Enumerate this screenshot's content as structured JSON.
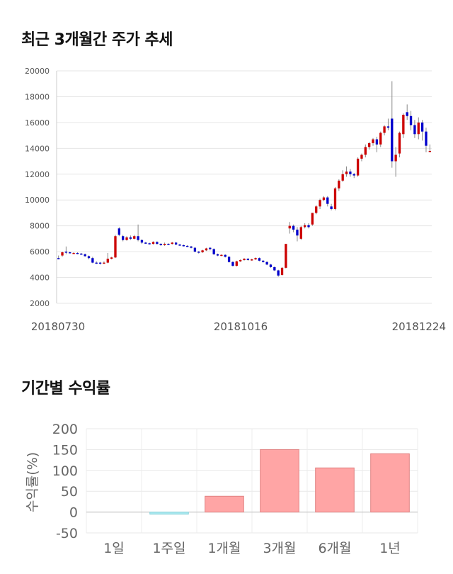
{
  "section1_title": "최근 3개월간 주가 추세",
  "section2_title": "기간별 수익률",
  "chart_data": [
    {
      "type": "candlestick",
      "ylim": [
        2000,
        20000
      ],
      "yticks": [
        2000,
        4000,
        6000,
        8000,
        10000,
        12000,
        14000,
        16000,
        18000,
        20000
      ],
      "xticks": [
        "20180730",
        "20181016",
        "20181224"
      ],
      "colors": {
        "up": "#cc0000",
        "down": "#0000cc"
      },
      "candles": [
        [
          5500,
          5700,
          5450,
          5400
        ],
        [
          5700,
          6000,
          5950,
          5600
        ],
        [
          6000,
          6400,
          5950,
          5800
        ],
        [
          5950,
          6000,
          5900,
          5900
        ],
        [
          5900,
          5950,
          5900,
          5850
        ],
        [
          5900,
          5950,
          5850,
          5800
        ],
        [
          5850,
          5900,
          5800,
          5750
        ],
        [
          5800,
          5850,
          5650,
          5600
        ],
        [
          5650,
          5700,
          5500,
          5400
        ],
        [
          5500,
          5600,
          5150,
          5100
        ],
        [
          5150,
          5250,
          5100,
          5050
        ],
        [
          5150,
          5200,
          5100,
          5000
        ],
        [
          5100,
          5250,
          5150,
          5050
        ],
        [
          5150,
          5900,
          5450,
          5100
        ],
        [
          5450,
          5600,
          5550,
          5400
        ],
        [
          5550,
          7300,
          7200,
          5500
        ],
        [
          7800,
          7900,
          7300,
          7200
        ],
        [
          7200,
          7300,
          6900,
          6800
        ],
        [
          6900,
          7200,
          7100,
          6850
        ],
        [
          7100,
          7250,
          7000,
          6900
        ],
        [
          7000,
          7300,
          7200,
          6950
        ],
        [
          7200,
          8100,
          6900,
          6800
        ],
        [
          6900,
          6950,
          6700,
          6600
        ],
        [
          6700,
          6750,
          6650,
          6600
        ],
        [
          6650,
          6700,
          6600,
          6550
        ],
        [
          6600,
          6800,
          6750,
          6550
        ],
        [
          6750,
          6800,
          6600,
          6550
        ],
        [
          6600,
          6650,
          6500,
          6450
        ],
        [
          6500,
          6700,
          6600,
          6450
        ],
        [
          6600,
          6650,
          6550,
          6500
        ],
        [
          6600,
          6750,
          6700,
          6550
        ],
        [
          6700,
          6750,
          6550,
          6500
        ],
        [
          6550,
          6600,
          6500,
          6450
        ],
        [
          6500,
          6550,
          6450,
          6400
        ],
        [
          6450,
          6500,
          6400,
          6350
        ],
        [
          6400,
          6450,
          6300,
          6250
        ],
        [
          6300,
          6350,
          6000,
          5950
        ],
        [
          6000,
          6050,
          5950,
          5850
        ],
        [
          5950,
          6150,
          6100,
          5900
        ],
        [
          6100,
          6300,
          6250,
          6050
        ],
        [
          6300,
          6350,
          6200,
          6100
        ],
        [
          6200,
          6250,
          5800,
          5750
        ],
        [
          5800,
          5850,
          5700,
          5650
        ],
        [
          5700,
          5800,
          5750,
          5650
        ],
        [
          5750,
          5800,
          5600,
          5550
        ],
        [
          5600,
          5650,
          5200,
          5150
        ],
        [
          5200,
          5250,
          4900,
          4850
        ],
        [
          4900,
          5300,
          5250,
          4850
        ],
        [
          5250,
          5400,
          5350,
          5200
        ],
        [
          5350,
          5500,
          5450,
          5300
        ],
        [
          5450,
          5500,
          5350,
          5300
        ],
        [
          5350,
          5450,
          5400,
          5300
        ],
        [
          5400,
          5550,
          5500,
          5350
        ],
        [
          5500,
          5550,
          5300,
          5250
        ],
        [
          5300,
          5350,
          5200,
          5150
        ],
        [
          5200,
          5250,
          5000,
          4950
        ],
        [
          5000,
          5050,
          4800,
          4750
        ],
        [
          4800,
          4850,
          4550,
          4500
        ],
        [
          4550,
          4600,
          4150,
          4050
        ],
        [
          4200,
          4800,
          4750,
          4150
        ],
        [
          4750,
          6600,
          6600,
          4700
        ],
        [
          7800,
          8300,
          8000,
          7400
        ],
        [
          8000,
          8100,
          7700,
          7500
        ],
        [
          7700,
          7900,
          7250,
          6800
        ],
        [
          7000,
          8000,
          7900,
          6900
        ],
        [
          7900,
          8200,
          8050,
          7800
        ],
        [
          8050,
          8200,
          7900,
          7800
        ],
        [
          8100,
          9000,
          9000,
          8000
        ],
        [
          9000,
          9600,
          9500,
          8900
        ],
        [
          9500,
          10100,
          10000,
          9300
        ],
        [
          10000,
          10300,
          10200,
          9900
        ],
        [
          10200,
          10300,
          9700,
          9500
        ],
        [
          9500,
          9700,
          9300,
          9200
        ],
        [
          9300,
          11000,
          10900,
          9200
        ],
        [
          10900,
          11600,
          11500,
          10700
        ],
        [
          11500,
          12300,
          12000,
          11400
        ],
        [
          12000,
          12600,
          12200,
          11800
        ],
        [
          12200,
          12400,
          12000,
          11800
        ],
        [
          12000,
          12100,
          11900,
          11700
        ],
        [
          11900,
          13300,
          13200,
          11800
        ],
        [
          13200,
          13600,
          13500,
          13000
        ],
        [
          13500,
          14300,
          14100,
          13300
        ],
        [
          14100,
          14500,
          14400,
          13900
        ],
        [
          14400,
          14800,
          14700,
          14200
        ],
        [
          14700,
          14900,
          14300,
          13700
        ],
        [
          14300,
          15300,
          15200,
          14100
        ],
        [
          15200,
          15800,
          15700,
          15000
        ],
        [
          15700,
          16300,
          15600,
          15400
        ],
        [
          16300,
          19200,
          13000,
          12500
        ],
        [
          13000,
          14100,
          13500,
          11800
        ],
        [
          13600,
          15300,
          15200,
          13300
        ],
        [
          15100,
          16700,
          16600,
          14800
        ],
        [
          16800,
          17400,
          16500,
          16200
        ],
        [
          16500,
          16900,
          15800,
          15400
        ],
        [
          15800,
          16200,
          15100,
          14800
        ],
        [
          15100,
          16400,
          16000,
          14700
        ],
        [
          16000,
          16200,
          15300,
          14600
        ],
        [
          15300,
          15600,
          14200,
          13700
        ],
        [
          13800,
          14300,
          13800,
          13700
        ]
      ]
    },
    {
      "type": "bar",
      "categories": [
        "1일",
        "1주일",
        "1개월",
        "3개월",
        "6개월",
        "1년"
      ],
      "values": [
        0,
        -5,
        38,
        150,
        106,
        140
      ],
      "ylabel": "수익률(%)",
      "ylim": [
        -50,
        200
      ],
      "yticks": [
        -50,
        0,
        50,
        100,
        150,
        200
      ],
      "colors": {
        "positive": "#ffa5a5",
        "negative": "#a8e8ef",
        "positive_edge": "#e08080",
        "negative_edge": "#8fd3dc"
      },
      "grid": true
    }
  ]
}
